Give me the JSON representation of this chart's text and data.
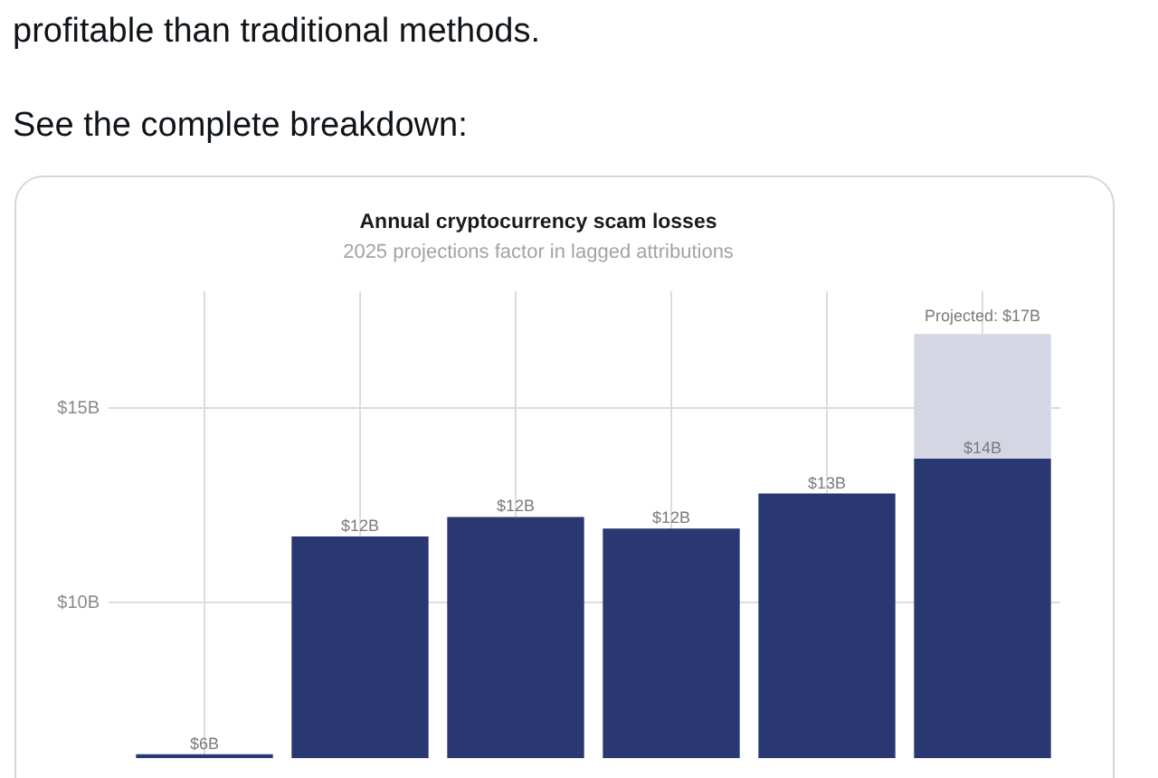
{
  "chart_data": {
    "type": "bar",
    "title": "Annual cryptocurrency scam losses",
    "subtitle": "2025 projections factor in lagged attributions",
    "annotations": [
      "profitable than traditional methods.",
      "See the complete breakdown:"
    ],
    "categories": [
      null,
      null,
      null,
      null,
      null,
      null
    ],
    "series": [
      {
        "color": "#293870",
        "values": [
          6.1,
          11.7,
          12.2,
          11.9,
          12.8,
          13.7
        ],
        "value_labels": [
          "$6B",
          "$12B",
          "$12B",
          "$12B",
          "$13B",
          "$14B"
        ]
      },
      {
        "color": "#d4d6e4",
        "values": [
          null,
          null,
          null,
          null,
          null,
          3.2
        ],
        "base": [
          null,
          null,
          null,
          null,
          null,
          13.7
        ]
      }
    ],
    "totals": [
      null,
      null,
      null,
      null,
      null,
      "Projected: $17B"
    ],
    "ylim": [
      6,
      18
    ],
    "yticks": [
      {
        "value": 10,
        "label": "$10B"
      },
      {
        "value": 15,
        "label": "$15B"
      }
    ],
    "grid": true,
    "tick_labels": "y"
  }
}
